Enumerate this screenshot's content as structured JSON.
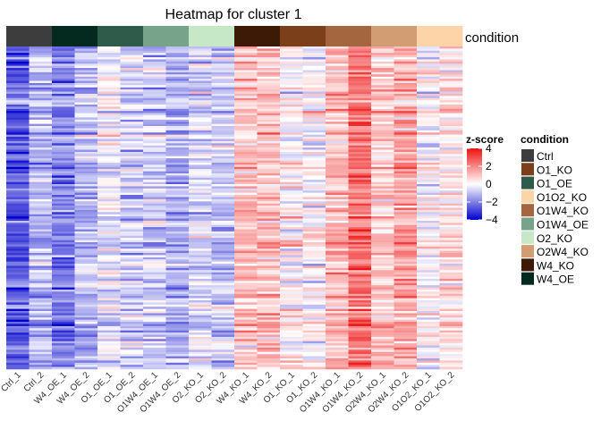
{
  "chart_data": {
    "type": "heatmap",
    "title": "Heatmap for cluster 1",
    "annotation_label": "condition",
    "columns": [
      "Ctrl_1",
      "Ctrl_2",
      "W4_OE_1",
      "W4_OE_2",
      "O1_OE_1",
      "O1_OE_2",
      "O1W4_OE_1",
      "O1W4_OE_2",
      "O2_KO_1",
      "O2_KO_2",
      "W4_KO_1",
      "W4_KO_2",
      "O1_KO_1",
      "O1_KO_2",
      "O1W4_KO_1",
      "O1W4_KO_2",
      "O2W4_KO_1",
      "O2W4_KO_2",
      "O1O2_KO_1",
      "O1O2_KO_2"
    ],
    "column_condition": [
      "Ctrl",
      "Ctrl",
      "W4_OE",
      "W4_OE",
      "O1_OE",
      "O1_OE",
      "O1W4_OE",
      "O1W4_OE",
      "O2_KO",
      "O2_KO",
      "W4_KO",
      "W4_KO",
      "O1_KO",
      "O1_KO",
      "O1W4_KO",
      "O1W4_KO",
      "O2W4_KO",
      "O2W4_KO",
      "O1O2_KO",
      "O1O2_KO"
    ],
    "column_mean_zscore": [
      -2.5,
      -1.0,
      -2.0,
      -1.0,
      -0.3,
      -0.7,
      -0.8,
      -1.2,
      -0.6,
      -0.8,
      1.0,
      1.1,
      0.2,
      0.1,
      1.2,
      2.4,
      1.0,
      1.4,
      0.0,
      0.5
    ],
    "color_scale": {
      "title": "z-score",
      "breaks": [
        4,
        2,
        0,
        -2,
        -4
      ],
      "range": [
        -4,
        4
      ],
      "colors": {
        "low": "#0000cc",
        "mid": "#ffffff",
        "high": "#ee1111"
      }
    },
    "legend": {
      "title": "condition",
      "items": [
        {
          "label": "Ctrl",
          "color": "#3d3d3d"
        },
        {
          "label": "O1_KO",
          "color": "#7b3f1a"
        },
        {
          "label": "O1_OE",
          "color": "#2f5c4a"
        },
        {
          "label": "O1O2_KO",
          "color": "#fdd3a8"
        },
        {
          "label": "O1W4_KO",
          "color": "#a3663f"
        },
        {
          "label": "O1W4_OE",
          "color": "#76a38a"
        },
        {
          "label": "O2_KO",
          "color": "#c6e8c6"
        },
        {
          "label": "O2W4_KO",
          "color": "#d39d74"
        },
        {
          "label": "W4_KO",
          "color": "#3d1a06"
        },
        {
          "label": "W4_OE",
          "color": "#04291f"
        }
      ]
    }
  }
}
